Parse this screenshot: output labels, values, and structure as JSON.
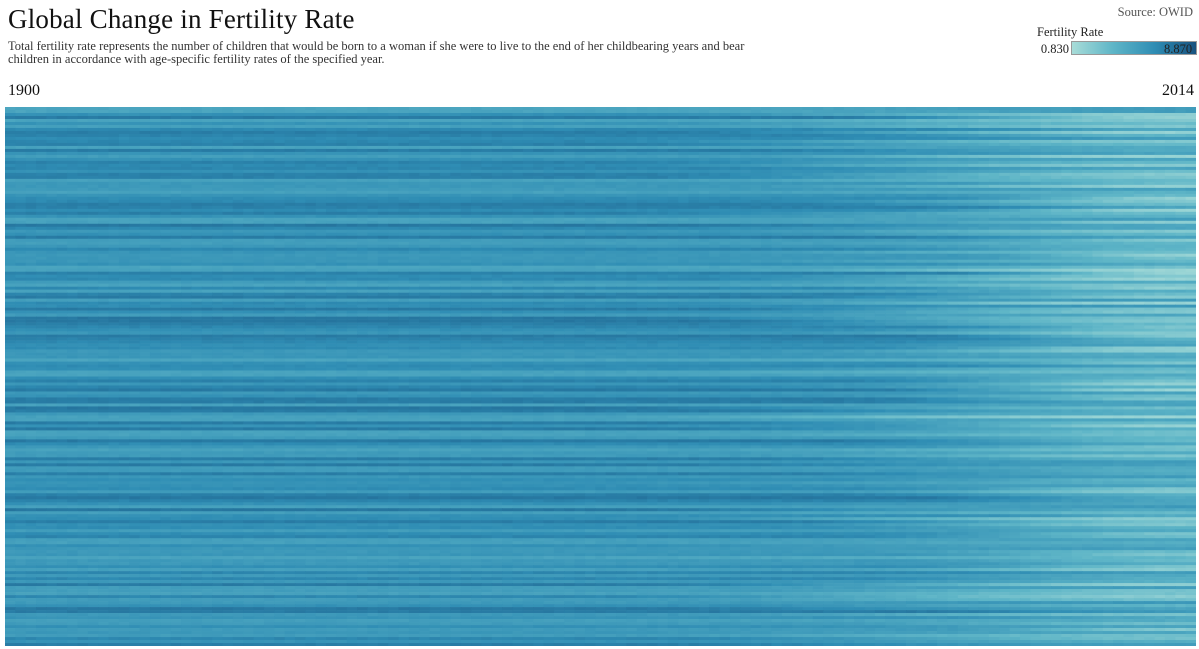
{
  "title": "Global Change in Fertility Rate",
  "subtitle": "Total fertility rate represents the number of children that would be born to a woman if she were to live to the end of her childbearing years and bear children in accordance with age-specific fertility rates of the specified year.",
  "source": "Source: OWID",
  "legend": {
    "title": "Fertility Rate",
    "min_label": "0.830",
    "max_label": "8.870",
    "colors": [
      "#a8dcd8",
      "#5eb5c7",
      "#2f8db4",
      "#18527f"
    ]
  },
  "chart_data": {
    "type": "heatmap",
    "title": "Global Change in Fertility Rate",
    "x_start_label": "1900",
    "x_end_label": "2014",
    "x_range": [
      1900,
      2014
    ],
    "value_range": [
      0.83,
      8.87
    ],
    "rows": 180
  }
}
